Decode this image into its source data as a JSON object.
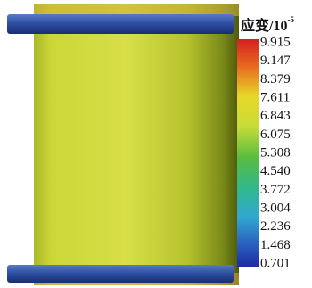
{
  "legend": {
    "title": "应变/10",
    "exponent": "-5",
    "ticks": [
      "9.915",
      "9.147",
      "8.379",
      "7.611",
      "6.843",
      "6.075",
      "5.308",
      "4.540",
      "3.772",
      "3.004",
      "2.236",
      "1.468",
      "0.701"
    ]
  }
}
